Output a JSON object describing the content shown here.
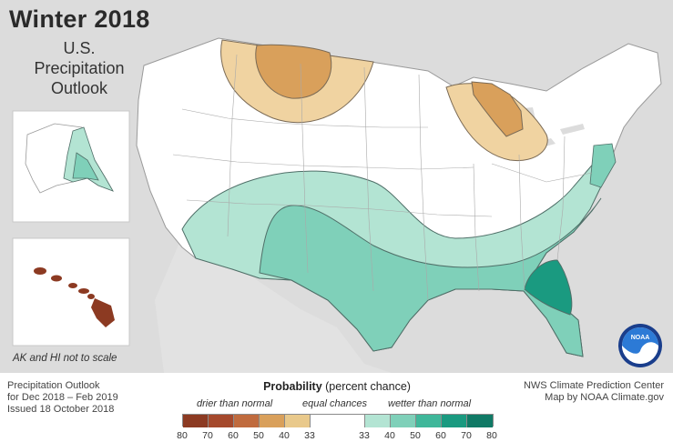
{
  "title": "Winter 2018",
  "subtitle_lines": [
    "U.S.",
    "Precipitation",
    "Outlook"
  ],
  "inset_note": "AK and HI not to scale",
  "info_left": [
    "Precipitation Outlook",
    "for Dec 2018 – Feb 2019",
    "Issued 18 October 2018"
  ],
  "info_right": [
    "NWS Climate Prediction Center",
    "Map by NOAA Climate.gov"
  ],
  "legend": {
    "title_bold": "Probability",
    "title_rest": " (percent chance)",
    "drier_label": "drier than normal",
    "equal_label": "equal chances",
    "wetter_label": "wetter than normal",
    "ticks": [
      "80",
      "70",
      "60",
      "50",
      "40",
      "33",
      "33",
      "40",
      "50",
      "60",
      "70",
      "80"
    ],
    "colors": [
      "#8c3a22",
      "#a5492c",
      "#c06b3e",
      "#d9a05b",
      "#e9c98b",
      "#ffffff",
      "#ffffff",
      "#b3e4d3",
      "#7fd0b9",
      "#3fb79a",
      "#1a9a80",
      "#107a66"
    ]
  },
  "logo_text": "NOAA"
}
